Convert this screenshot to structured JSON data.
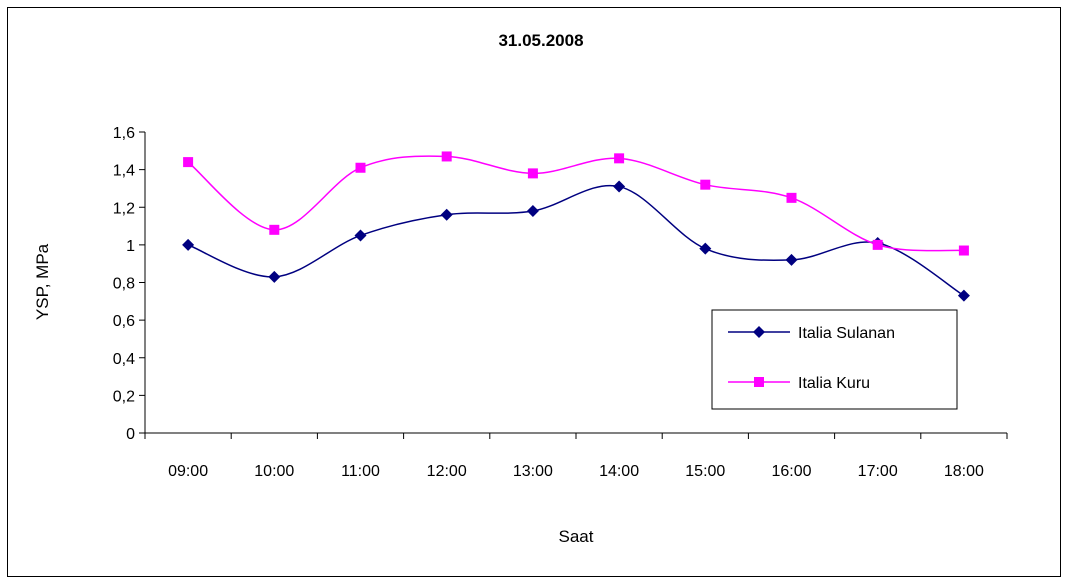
{
  "chart_data": {
    "type": "line",
    "title": "31.05.2008",
    "xlabel": "Saat",
    "ylabel": "YSP, MPa",
    "categories": [
      "09:00",
      "10:00",
      "11:00",
      "12:00",
      "13:00",
      "14:00",
      "15:00",
      "16:00",
      "17:00",
      "18:00"
    ],
    "ylim": [
      0,
      1.6
    ],
    "yticks": [
      0,
      0.2,
      0.4,
      0.6,
      0.8,
      1,
      1.2,
      1.4,
      1.6
    ],
    "ytick_labels": [
      "0",
      "0,2",
      "0,4",
      "0,6",
      "0,8",
      "1",
      "1,2",
      "1,4",
      "1,6"
    ],
    "grid": false,
    "legend_position": "right",
    "series": [
      {
        "name": "Italia Sulanan",
        "color": "#000080",
        "marker": "diamond",
        "values": [
          1.0,
          0.83,
          1.05,
          1.16,
          1.18,
          1.31,
          0.98,
          0.92,
          1.01,
          0.73
        ]
      },
      {
        "name": "Italia Kuru",
        "color": "#ff00ff",
        "marker": "square",
        "values": [
          1.44,
          1.08,
          1.41,
          1.47,
          1.38,
          1.46,
          1.32,
          1.25,
          1.0,
          0.97
        ]
      }
    ]
  }
}
